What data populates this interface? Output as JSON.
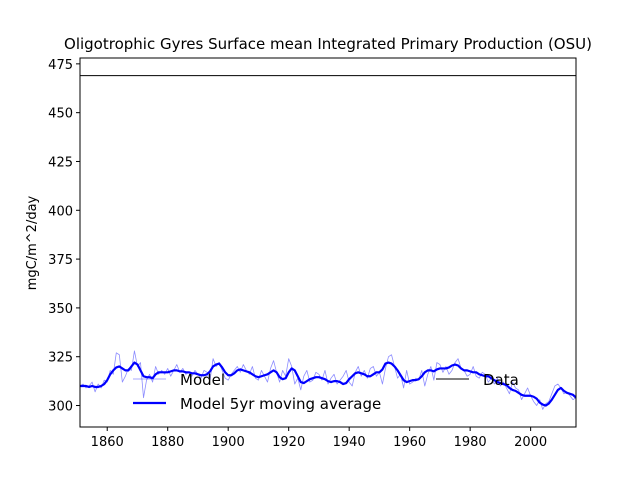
{
  "chart_data": {
    "type": "line",
    "title": "Oligotrophic Gyres Surface mean Integrated Primary Production (OSU)",
    "xlabel": "",
    "ylabel": "mgC/m^2/day",
    "xlim": [
      1851,
      2015
    ],
    "ylim": [
      289,
      478
    ],
    "x_ticks": [
      1860,
      1880,
      1900,
      1920,
      1940,
      1960,
      1980,
      2000
    ],
    "y_ticks": [
      300,
      325,
      350,
      375,
      400,
      425,
      450,
      475
    ],
    "grid": false,
    "legend_placement": "lower center",
    "colors": {
      "model": "#0000ff",
      "moving_average": "#0000ff",
      "data": "#000000"
    },
    "series": [
      {
        "name": "Model",
        "style": "thin",
        "x": [
          1851,
          1852,
          1853,
          1854,
          1855,
          1856,
          1857,
          1858,
          1859,
          1860,
          1861,
          1862,
          1863,
          1864,
          1865,
          1866,
          1867,
          1868,
          1869,
          1870,
          1871,
          1872,
          1873,
          1874,
          1875,
          1876,
          1877,
          1878,
          1879,
          1880,
          1881,
          1882,
          1883,
          1884,
          1885,
          1886,
          1887,
          1888,
          1889,
          1890,
          1891,
          1892,
          1893,
          1894,
          1895,
          1896,
          1897,
          1898,
          1899,
          1900,
          1901,
          1902,
          1903,
          1904,
          1905,
          1906,
          1907,
          1908,
          1909,
          1910,
          1911,
          1912,
          1913,
          1914,
          1915,
          1916,
          1917,
          1918,
          1919,
          1920,
          1921,
          1922,
          1923,
          1924,
          1925,
          1926,
          1927,
          1928,
          1929,
          1930,
          1931,
          1932,
          1933,
          1934,
          1935,
          1936,
          1937,
          1938,
          1939,
          1940,
          1941,
          1942,
          1943,
          1944,
          1945,
          1946,
          1947,
          1948,
          1949,
          1950,
          1951,
          1952,
          1953,
          1954,
          1955,
          1956,
          1957,
          1958,
          1959,
          1960,
          1961,
          1962,
          1963,
          1964,
          1965,
          1966,
          1967,
          1968,
          1969,
          1970,
          1971,
          1972,
          1973,
          1974,
          1975,
          1976,
          1977,
          1978,
          1979,
          1980,
          1981,
          1982,
          1983,
          1984,
          1985,
          1986,
          1987,
          1988,
          1989,
          1990,
          1991,
          1992,
          1993,
          1994,
          1995,
          1996,
          1997,
          1998,
          1999,
          2000,
          2001,
          2002,
          2003,
          2004,
          2005,
          2006,
          2007,
          2008,
          2009,
          2010,
          2011,
          2012,
          2013,
          2014,
          2015
        ],
        "y": [
          310,
          311,
          309,
          310,
          312,
          307,
          311,
          309,
          313,
          312,
          318,
          316,
          327,
          326,
          312,
          315,
          319,
          318,
          328,
          320,
          322,
          304,
          313,
          316,
          312,
          320,
          316,
          318,
          316,
          319,
          315,
          318,
          321,
          317,
          319,
          316,
          317,
          315,
          318,
          316,
          314,
          318,
          317,
          313,
          324,
          320,
          322,
          318,
          314,
          313,
          316,
          318,
          320,
          317,
          321,
          318,
          316,
          320,
          314,
          313,
          318,
          315,
          312,
          319,
          323,
          317,
          312,
          318,
          315,
          324,
          320,
          311,
          314,
          308,
          315,
          318,
          312,
          313,
          317,
          316,
          313,
          318,
          311,
          314,
          316,
          311,
          313,
          315,
          318,
          312,
          310,
          317,
          320,
          315,
          318,
          314,
          319,
          320,
          315,
          317,
          311,
          319,
          325,
          326,
          320,
          314,
          316,
          309,
          318,
          311,
          312,
          314,
          313,
          318,
          310,
          316,
          320,
          313,
          322,
          321,
          317,
          320,
          316,
          318,
          322,
          324,
          319,
          318,
          315,
          316,
          320,
          315,
          314,
          317,
          316,
          312,
          314,
          311,
          314,
          310,
          312,
          309,
          306,
          312,
          309,
          308,
          303,
          306,
          309,
          305,
          302,
          300,
          303,
          298,
          301,
          302,
          306,
          310,
          311,
          309,
          306,
          307,
          305,
          303,
          304
        ]
      },
      {
        "name": "Model 5yr moving average",
        "style": "thick",
        "x": [
          1851,
          1852,
          1853,
          1854,
          1855,
          1856,
          1857,
          1858,
          1859,
          1860,
          1861,
          1862,
          1863,
          1864,
          1865,
          1866,
          1867,
          1868,
          1869,
          1870,
          1871,
          1872,
          1873,
          1874,
          1875,
          1876,
          1877,
          1878,
          1879,
          1880,
          1881,
          1882,
          1883,
          1884,
          1885,
          1886,
          1887,
          1888,
          1889,
          1890,
          1891,
          1892,
          1893,
          1894,
          1895,
          1896,
          1897,
          1898,
          1899,
          1900,
          1901,
          1902,
          1903,
          1904,
          1905,
          1906,
          1907,
          1908,
          1909,
          1910,
          1911,
          1912,
          1913,
          1914,
          1915,
          1916,
          1917,
          1918,
          1919,
          1920,
          1921,
          1922,
          1923,
          1924,
          1925,
          1926,
          1927,
          1928,
          1929,
          1930,
          1931,
          1932,
          1933,
          1934,
          1935,
          1936,
          1937,
          1938,
          1939,
          1940,
          1941,
          1942,
          1943,
          1944,
          1945,
          1946,
          1947,
          1948,
          1949,
          1950,
          1951,
          1952,
          1953,
          1954,
          1955,
          1956,
          1957,
          1958,
          1959,
          1960,
          1961,
          1962,
          1963,
          1964,
          1965,
          1966,
          1967,
          1968,
          1969,
          1970,
          1971,
          1972,
          1973,
          1974,
          1975,
          1976,
          1977,
          1978,
          1979,
          1980,
          1981,
          1982,
          1983,
          1984,
          1985,
          1986,
          1987,
          1988,
          1989,
          1990,
          1991,
          1992,
          1993,
          1994,
          1995,
          1996,
          1997,
          1998,
          1999,
          2000,
          2001,
          2002,
          2003,
          2004,
          2005,
          2006,
          2007,
          2008,
          2009,
          2010,
          2011,
          2012,
          2013,
          2014,
          2015
        ],
        "y": [
          310,
          310,
          310,
          309.5,
          310,
          309.5,
          309.5,
          310,
          311,
          313,
          316,
          318,
          319.5,
          320,
          319,
          318,
          318,
          320,
          322,
          321,
          318,
          315,
          314.5,
          314.5,
          314,
          316,
          317,
          317,
          317,
          317,
          317.5,
          318,
          318,
          317.5,
          317.5,
          317,
          317,
          316.5,
          316.5,
          316,
          315.5,
          315.5,
          316,
          317.5,
          320,
          321,
          321.5,
          319.5,
          317,
          315.5,
          315.5,
          316.5,
          318,
          318.5,
          318,
          317.5,
          317,
          316,
          315,
          314.5,
          315,
          315.5,
          316,
          317,
          318,
          317,
          314.5,
          313.5,
          314,
          317,
          319,
          318,
          315,
          312,
          311.5,
          312.5,
          313.5,
          314,
          314.5,
          314.5,
          314,
          313.5,
          312.5,
          312,
          312.5,
          312.5,
          312,
          311,
          311.5,
          313.5,
          315,
          316.5,
          317,
          316.5,
          316,
          315,
          315,
          316,
          317,
          317,
          318.5,
          321.5,
          322,
          321.5,
          320,
          318,
          315.5,
          313,
          312,
          312.5,
          313,
          313,
          313.5,
          315,
          317,
          318,
          318,
          317.5,
          318.5,
          319,
          319,
          319,
          319.5,
          320.5,
          321,
          320.5,
          319,
          318,
          318,
          317.5,
          317,
          317,
          316,
          315.5,
          315,
          315,
          314,
          313,
          312,
          311.5,
          311,
          310.5,
          309,
          308,
          307.5,
          306.5,
          305.5,
          305,
          305,
          305,
          304.5,
          303.5,
          301.5,
          300.5,
          300,
          301,
          303,
          305.5,
          308,
          309,
          307.5,
          306.5,
          306,
          305.5,
          304
        ]
      },
      {
        "name": "Data",
        "style": "hline",
        "x": [
          1851,
          2015
        ],
        "y": [
          469,
          469
        ]
      }
    ]
  }
}
